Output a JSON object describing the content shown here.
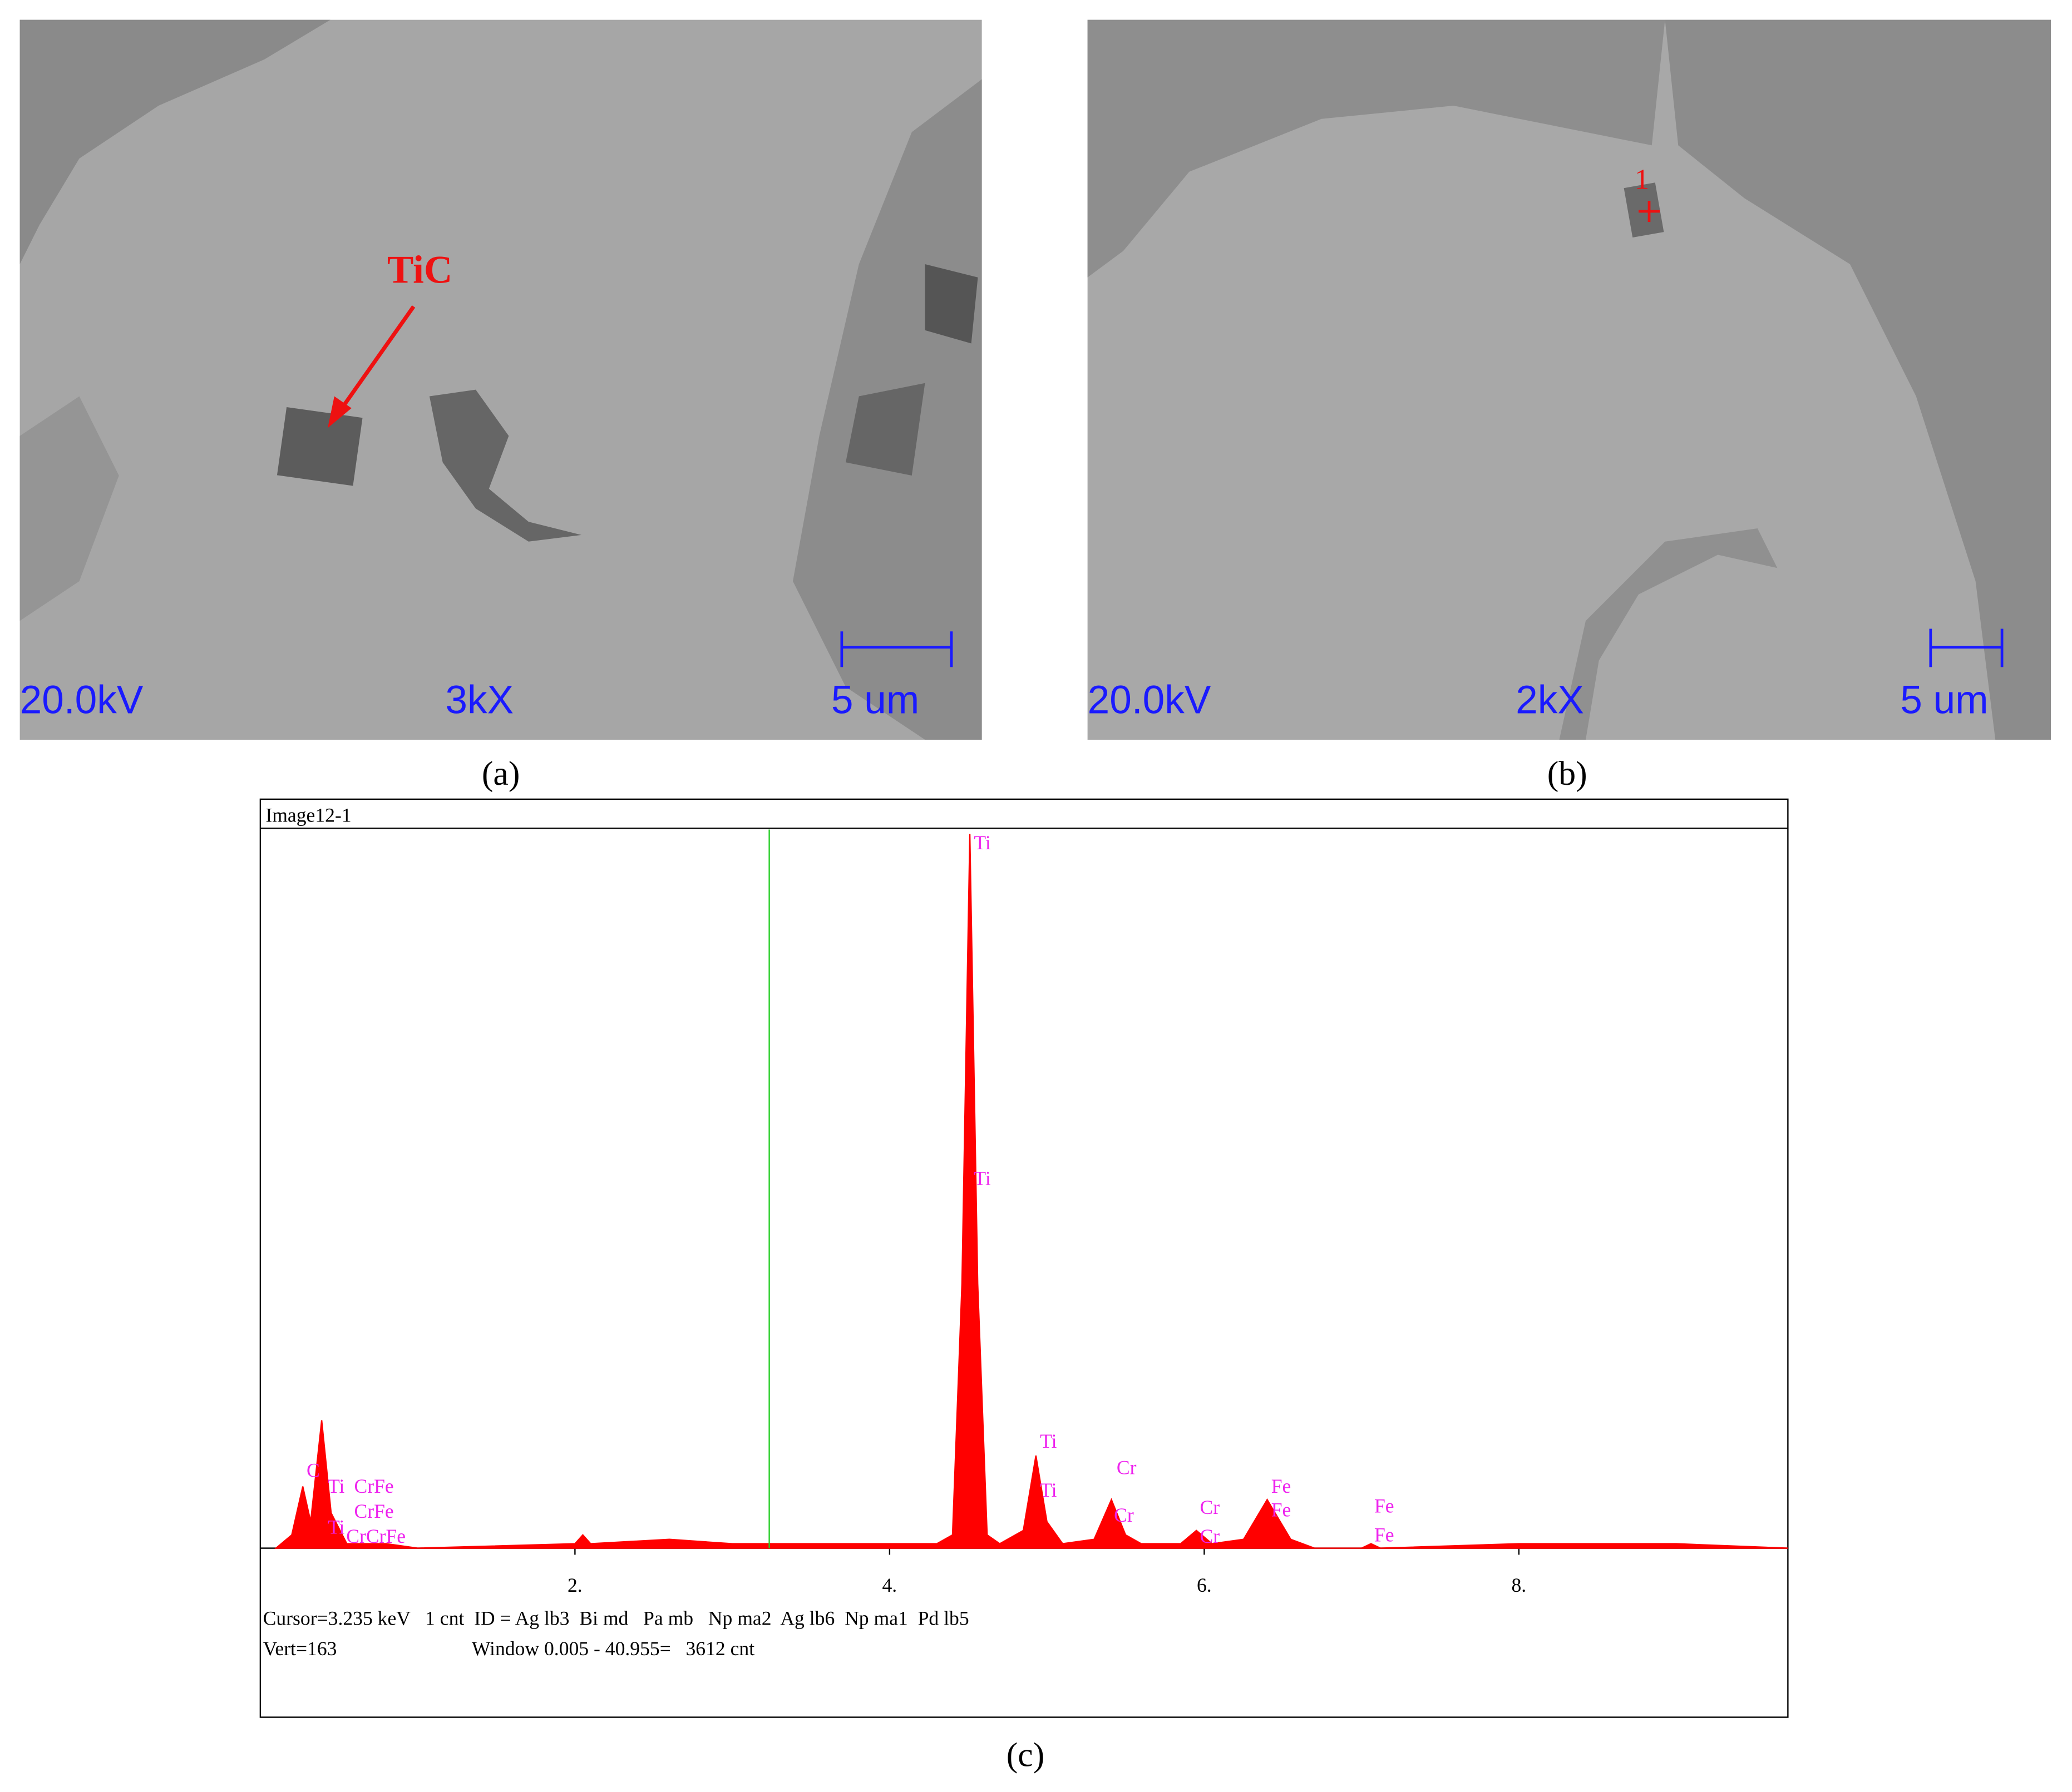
{
  "panel_a": {
    "label": "(a)",
    "voltage": "20.0kV",
    "magnification": "3kX",
    "scale": "5 um",
    "marker": "TiC"
  },
  "panel_b": {
    "label": "(b)",
    "voltage": "20.0kV",
    "magnification": "2kX",
    "scale": "5 um",
    "point": "1"
  },
  "chart_data": {
    "type": "area",
    "title": "Image12-1",
    "label": "(c)",
    "color": "#ff0000",
    "cursor_color": "#22cc22",
    "x": [
      0.1,
      0.2,
      0.27,
      0.32,
      0.39,
      0.45,
      0.55,
      0.8,
      1.0,
      2.0,
      2.05,
      2.1,
      2.6,
      3.0,
      3.2,
      4.3,
      4.4,
      4.46,
      4.51,
      4.56,
      4.62,
      4.7,
      4.85,
      4.93,
      5.0,
      5.1,
      5.3,
      5.41,
      5.5,
      5.6,
      5.85,
      5.95,
      6.05,
      6.25,
      6.4,
      6.55,
      6.7,
      7.0,
      7.06,
      7.12,
      8.0,
      9.0,
      9.71
    ],
    "values": [
      0,
      3,
      14,
      6,
      29,
      8,
      1,
      1,
      0,
      1,
      3,
      1,
      2,
      1,
      1,
      1,
      3,
      60,
      162,
      60,
      3,
      1,
      4,
      21,
      6,
      1,
      2,
      11,
      3,
      1,
      1,
      4,
      1,
      2,
      11,
      2,
      0,
      0,
      1,
      0,
      1,
      1,
      0
    ],
    "xlim": [
      0,
      9.71
    ],
    "ylim": [
      0,
      163
    ],
    "xticks": [
      {
        "value": 2,
        "label": "2."
      },
      {
        "value": 4,
        "label": "4."
      },
      {
        "value": 6,
        "label": "6."
      },
      {
        "value": 8,
        "label": "8."
      }
    ],
    "cursor": 3.235,
    "peak_labels": [
      "Ti",
      "Ti",
      "Ti",
      "Ti",
      "Cr",
      "Cr",
      "Cr",
      "Cr",
      "Fe",
      "Fe",
      "Fe",
      "Fe",
      "C",
      "Ti",
      "CrFe",
      "CrFe",
      "Ti",
      "CrCrFe"
    ],
    "status": [
      "Cursor=3.235 keV   1 cnt  ID = Ag lb3  Bi md   Pa mb   Np ma2  Ag lb6  Np ma1  Pd lb5",
      "Vert=163",
      "Window 0.005 - 40.955=   3612 cnt"
    ]
  }
}
